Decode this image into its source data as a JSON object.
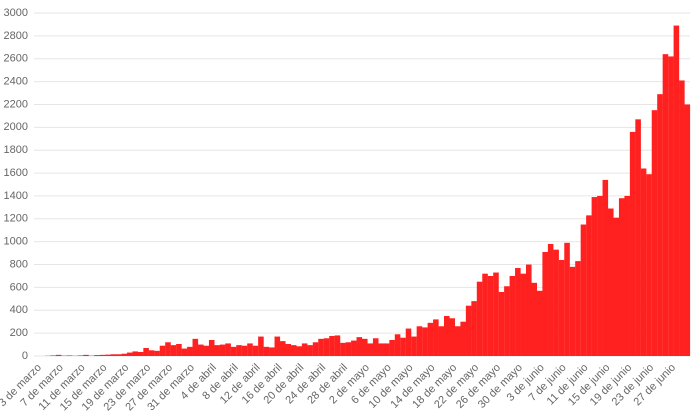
{
  "chart_data": {
    "type": "bar",
    "color": "#ff2020",
    "grid": true,
    "ylim": [
      0,
      3000
    ],
    "yticks": [
      0,
      200,
      400,
      600,
      800,
      1000,
      1200,
      1400,
      1600,
      1800,
      2000,
      2200,
      2400,
      2600,
      2800,
      3000
    ],
    "categories": [
      "3 de marzo",
      null,
      null,
      null,
      "7 de marzo",
      null,
      null,
      null,
      "11 de marzo",
      null,
      null,
      null,
      "15 de marzo",
      null,
      null,
      null,
      "19 de marzo",
      null,
      null,
      null,
      "23 de marzo",
      null,
      null,
      null,
      "27 de marzo",
      null,
      null,
      null,
      "31 de marzo",
      null,
      null,
      null,
      "4 de abril",
      null,
      null,
      null,
      "8 de abril",
      null,
      null,
      null,
      "12 de abril",
      null,
      null,
      null,
      "16 de abril",
      null,
      null,
      null,
      "20 de abril",
      null,
      null,
      null,
      "24 de abril",
      null,
      null,
      null,
      "28 de abril",
      null,
      null,
      null,
      "2 de mayo",
      null,
      null,
      null,
      "6 de mayo",
      null,
      null,
      null,
      "10 de mayo",
      null,
      null,
      null,
      "14 de mayo",
      null,
      null,
      null,
      "18 de mayo",
      null,
      null,
      null,
      "22 de mayo",
      null,
      null,
      null,
      "26 de mayo",
      null,
      null,
      null,
      "30 de mayo",
      null,
      null,
      null,
      "3 de junio",
      null,
      null,
      null,
      "7 de junio",
      null,
      null,
      null,
      "11 de junio",
      null,
      null,
      null,
      "15 de junio",
      null,
      null,
      null,
      "19 de junio",
      null,
      null,
      null,
      "23 de junio",
      null,
      null,
      null,
      "27 de junio",
      null,
      null,
      null
    ],
    "values": [
      0,
      0,
      2,
      5,
      10,
      3,
      5,
      2,
      5,
      10,
      3,
      8,
      10,
      12,
      15,
      15,
      20,
      30,
      40,
      35,
      70,
      50,
      45,
      90,
      120,
      95,
      105,
      65,
      80,
      150,
      100,
      90,
      140,
      95,
      100,
      110,
      80,
      95,
      90,
      110,
      90,
      170,
      80,
      75,
      170,
      130,
      105,
      95,
      85,
      110,
      95,
      120,
      150,
      155,
      175,
      180,
      115,
      120,
      135,
      165,
      150,
      110,
      155,
      110,
      110,
      140,
      190,
      160,
      240,
      170,
      260,
      250,
      290,
      320,
      260,
      350,
      330,
      260,
      300,
      440,
      480,
      650,
      720,
      700,
      730,
      560,
      610,
      700,
      770,
      720,
      800,
      640,
      570,
      910,
      980,
      930,
      840,
      990,
      780,
      830,
      1150,
      1230,
      1390,
      1400,
      1540,
      1290,
      1210,
      1380,
      1400,
      1960,
      2070,
      1640,
      1590,
      2150,
      2290,
      2640,
      2620,
      2890,
      2410,
      2200
    ]
  }
}
